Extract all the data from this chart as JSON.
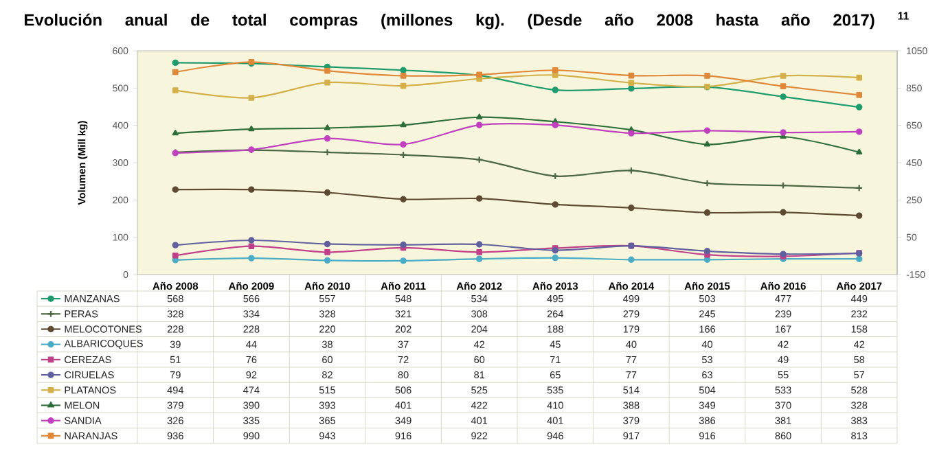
{
  "chart_data": {
    "type": "line",
    "title": "Evolución anual de total compras (millones kg). (Desde año 2008 hasta año 2017) $^{11}$",
    "ylabel": "Volumen (Mill kg)",
    "categories": [
      "Año 2008",
      "Año 2009",
      "Año 2010",
      "Año 2011",
      "Año 2012",
      "Año 2013",
      "Año 2014",
      "Año 2015",
      "Año 2016",
      "Año 2017"
    ],
    "ylim": [
      0,
      600
    ],
    "yticks": [
      0,
      100,
      200,
      300,
      400,
      500,
      600
    ],
    "y2lim": [
      -150,
      1050
    ],
    "y2ticks": [
      -150,
      50,
      250,
      450,
      650,
      850,
      1050
    ],
    "data_labels": true,
    "legend": "bottom",
    "series": [
      {
        "name": "MANZANAS",
        "color": "#1e9c6e",
        "marker": "circle",
        "values": [
          568,
          566,
          557,
          548,
          534,
          495,
          499,
          503,
          477,
          449
        ]
      },
      {
        "name": "PERAS",
        "color": "#4a6741",
        "marker": "cross",
        "values": [
          328,
          334,
          328,
          321,
          308,
          264,
          279,
          245,
          239,
          232
        ]
      },
      {
        "name": "MELOCOTONES",
        "color": "#5e4a32",
        "marker": "circle",
        "values": [
          228,
          228,
          220,
          202,
          204,
          188,
          179,
          166,
          167,
          158
        ]
      },
      {
        "name": "ALBARICOQUES",
        "color": "#4bacc6",
        "marker": "circle",
        "values": [
          39,
          44,
          38,
          37,
          42,
          45,
          40,
          40,
          42,
          42
        ]
      },
      {
        "name": "CEREZAS",
        "color": "#c0408a",
        "marker": "square",
        "values": [
          51,
          76,
          60,
          72,
          60,
          71,
          77,
          53,
          49,
          58
        ]
      },
      {
        "name": "CIRUELAS",
        "color": "#60609e",
        "marker": "circle",
        "values": [
          79,
          92,
          82,
          80,
          81,
          65,
          77,
          63,
          55,
          57
        ]
      },
      {
        "name": "PLATANOS",
        "color": "#d4b04a",
        "marker": "square",
        "values": [
          494,
          474,
          515,
          506,
          525,
          535,
          514,
          504,
          533,
          528
        ]
      },
      {
        "name": "MELON",
        "color": "#2d6e3a",
        "marker": "triangle",
        "values": [
          379,
          390,
          393,
          401,
          422,
          410,
          388,
          349,
          370,
          328
        ]
      },
      {
        "name": "SANDIA",
        "color": "#c040c0",
        "marker": "circle",
        "values": [
          326,
          335,
          365,
          349,
          401,
          401,
          379,
          386,
          381,
          383
        ]
      },
      {
        "name": "NARANJAS",
        "color": "#e0883a",
        "marker": "square",
        "axis": "y2",
        "values": [
          936,
          990,
          943,
          916,
          922,
          946,
          917,
          916,
          860,
          813
        ]
      }
    ]
  }
}
